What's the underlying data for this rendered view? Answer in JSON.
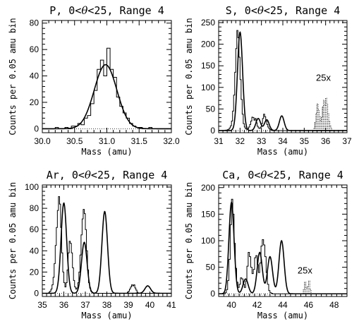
{
  "chart_data": [
    {
      "type": "line",
      "title": "P, 0<θ<25, Range 4",
      "title_parts": [
        "P, 0<",
        "θ",
        "<25, Range 4"
      ],
      "xlabel": "Mass (amu)",
      "ylabel": "Counts per 0.05 amu bin",
      "xlim": [
        30.0,
        32.0
      ],
      "ylim": [
        -3,
        82
      ],
      "xticks": [
        30.0,
        30.5,
        31.0,
        31.5,
        32.0
      ],
      "xtick_labels": [
        "30.0",
        "30.5",
        "31.0",
        "31.5",
        "32.0"
      ],
      "yticks": [
        0,
        20,
        40,
        60,
        80
      ],
      "ytick_labels": [
        "0",
        "20",
        "40",
        "60",
        "80"
      ],
      "series": [
        {
          "kind": "histogram",
          "bin_width": 0.05,
          "x": [
            30.0,
            30.05,
            30.1,
            30.15,
            30.2,
            30.25,
            30.3,
            30.35,
            30.4,
            30.45,
            30.5,
            30.55,
            30.6,
            30.65,
            30.7,
            30.75,
            30.8,
            30.85,
            30.9,
            30.95,
            31.0,
            31.05,
            31.1,
            31.15,
            31.2,
            31.25,
            31.3,
            31.35,
            31.4,
            31.45,
            31.5,
            31.55,
            31.6,
            31.65,
            31.7,
            31.75,
            31.8,
            31.85,
            31.9,
            31.95
          ],
          "values": [
            0,
            0,
            0,
            0,
            1,
            0,
            0,
            1,
            0,
            2,
            2,
            4,
            3,
            8,
            10,
            19,
            29,
            45,
            52,
            40,
            61,
            45,
            39,
            24,
            17,
            12,
            8,
            4,
            2,
            1,
            1,
            0,
            0,
            1,
            0,
            0,
            0,
            0,
            0,
            0
          ]
        },
        {
          "kind": "fit",
          "peaks": [
            {
              "center": 30.98,
              "height": 48.5,
              "sigma": 0.175
            }
          ]
        }
      ]
    },
    {
      "type": "line",
      "title": "S, 0<θ<25, Range 4",
      "title_parts": [
        "S, 0<",
        "θ",
        "<25, Range 4"
      ],
      "xlabel": "Mass (amu)",
      "ylabel": "Counts per 0.05 amu bin",
      "xlim": [
        31,
        37
      ],
      "ylim": [
        -5,
        255
      ],
      "xticks": [
        31,
        32,
        33,
        34,
        35,
        36,
        37
      ],
      "xtick_labels": [
        "31",
        "32",
        "33",
        "34",
        "35",
        "36",
        "37"
      ],
      "yticks": [
        0,
        50,
        100,
        150,
        200,
        250
      ],
      "ytick_labels": [
        "0",
        "50",
        "100",
        "150",
        "200",
        "250"
      ],
      "series": [
        {
          "kind": "histogram",
          "bin_width": 0.05,
          "x_start": 31.0,
          "values": [
            0,
            0,
            0,
            0,
            0,
            0,
            1,
            1,
            2,
            3,
            6,
            11,
            22,
            45,
            82,
            135,
            190,
            232,
            215,
            170,
            118,
            72,
            38,
            16,
            8,
            4,
            3,
            4,
            8,
            14,
            22,
            31,
            30,
            24,
            28,
            18,
            10,
            6,
            5,
            8,
            16,
            28,
            38,
            32,
            22,
            14,
            8,
            4,
            2,
            1,
            0,
            0,
            0,
            0,
            0,
            0,
            0,
            0,
            0,
            0,
            0,
            0,
            0,
            0,
            0,
            0,
            0,
            0,
            0,
            0,
            0,
            0,
            0,
            0,
            0,
            0,
            0,
            0,
            0,
            0,
            0,
            0,
            0,
            0,
            0,
            0,
            0,
            0,
            0,
            0,
            0,
            0,
            0,
            0,
            0,
            0,
            0,
            0,
            0,
            0,
            0,
            0,
            0,
            0,
            0,
            0,
            0,
            0,
            0,
            0,
            0,
            0,
            0,
            0,
            0,
            0,
            0,
            0,
            0,
            0
          ]
        },
        {
          "kind": "fit",
          "peaks": [
            {
              "center": 32.0,
              "height": 228,
              "sigma": 0.12
            },
            {
              "center": 32.85,
              "height": 28,
              "sigma": 0.11
            },
            {
              "center": 33.25,
              "height": 25,
              "sigma": 0.11
            },
            {
              "center": 33.95,
              "height": 34,
              "sigma": 0.11
            }
          ]
        },
        {
          "kind": "scaled",
          "dotted": true,
          "scale": "25x",
          "bin_width": 0.05,
          "x": [
            35.45,
            35.5,
            35.55,
            35.6,
            35.65,
            35.7,
            35.75,
            35.8,
            35.85,
            35.9,
            35.95,
            36.0,
            36.05,
            36.1,
            36.15,
            36.2,
            36.25
          ],
          "values": [
            5,
            20,
            40,
            62,
            48,
            32,
            22,
            30,
            55,
            70,
            58,
            75,
            62,
            40,
            22,
            10,
            4
          ]
        }
      ],
      "annotations": [
        "25x"
      ]
    },
    {
      "type": "line",
      "title": "Ar, 0<θ<25, Range 4",
      "title_parts": [
        "Ar, 0<",
        "θ",
        "<25, Range 4"
      ],
      "xlabel": "Mass (amu)",
      "ylabel": "Counts per 0.05 amu bin",
      "xlim": [
        35,
        41
      ],
      "ylim": [
        -3,
        102
      ],
      "xticks": [
        35,
        36,
        37,
        38,
        39,
        40,
        41
      ],
      "xtick_labels": [
        "35",
        "36",
        "37",
        "38",
        "39",
        "40",
        "41"
      ],
      "yticks": [
        0,
        20,
        40,
        60,
        80,
        100
      ],
      "ytick_labels": [
        "0",
        "20",
        "40",
        "60",
        "80",
        "100"
      ],
      "series": [
        {
          "kind": "histogram",
          "bin_width": 0.05,
          "x_start": 35.0,
          "values": [
            0,
            0,
            0,
            0,
            0,
            0,
            1,
            2,
            4,
            8,
            15,
            28,
            45,
            62,
            78,
            91,
            84,
            62,
            38,
            20,
            10,
            6,
            10,
            22,
            38,
            49,
            47,
            38,
            24,
            12,
            6,
            4,
            5,
            10,
            20,
            36,
            55,
            70,
            79,
            75,
            60,
            40,
            22,
            10,
            5,
            2,
            1,
            0,
            0,
            0,
            0,
            0,
            0,
            0,
            0,
            0,
            0,
            0,
            0,
            0,
            0,
            0,
            0,
            0,
            0,
            0,
            0,
            0,
            0,
            0,
            0,
            0,
            0,
            0,
            0,
            0,
            0,
            0,
            0,
            1,
            2,
            4,
            6,
            8,
            7,
            8,
            5,
            3,
            1,
            0,
            0,
            0,
            0,
            0,
            0,
            0,
            0,
            0,
            0,
            0,
            0,
            0,
            0,
            0,
            0,
            0,
            0,
            0,
            0,
            0,
            0,
            0,
            0,
            0,
            0,
            0,
            0,
            0,
            0,
            0
          ]
        },
        {
          "kind": "fit",
          "peaks": [
            {
              "center": 36.0,
              "height": 85,
              "sigma": 0.13
            },
            {
              "center": 36.95,
              "height": 48,
              "sigma": 0.13
            },
            {
              "center": 37.9,
              "height": 77,
              "sigma": 0.13
            },
            {
              "center": 39.9,
              "height": 7,
              "sigma": 0.13
            }
          ]
        }
      ]
    },
    {
      "type": "line",
      "title": "Ca, 0<θ<25, Range 4",
      "title_parts": [
        "Ca, 0<",
        "θ",
        "<25, Range 4"
      ],
      "xlabel": "Mass (amu)",
      "ylabel": "Counts per 0.05 amu bin",
      "xlim": [
        39,
        49
      ],
      "ylim": [
        -5,
        205
      ],
      "xticks": [
        40,
        42,
        44,
        46,
        48
      ],
      "xtick_labels": [
        "40",
        "42",
        "44",
        "46",
        "48"
      ],
      "yticks": [
        0,
        50,
        100,
        150,
        200
      ],
      "ytick_labels": [
        "0",
        "50",
        "100",
        "150",
        "200"
      ],
      "series": [
        {
          "kind": "histogram",
          "bin_width": 0.1,
          "x_start": 39.0,
          "values": [
            0,
            0,
            0,
            0,
            0,
            2,
            8,
            25,
            65,
            130,
            178,
            150,
            95,
            48,
            22,
            12,
            18,
            30,
            28,
            18,
            12,
            24,
            52,
            78,
            70,
            50,
            38,
            46,
            68,
            72,
            55,
            40,
            58,
            90,
            102,
            92,
            70,
            40,
            18,
            6,
            2,
            1,
            0,
            0,
            0,
            0,
            0,
            0,
            0,
            0,
            0,
            0,
            0,
            0,
            0,
            0,
            0,
            0,
            0,
            0,
            0,
            0,
            0,
            0,
            0,
            0,
            0,
            0,
            0,
            0,
            0,
            0,
            0,
            0,
            0,
            0,
            0,
            0,
            0,
            0,
            0,
            0,
            0,
            0,
            0,
            0,
            0,
            0,
            0,
            0,
            0,
            0,
            0,
            0,
            0,
            0,
            0,
            0,
            0,
            0
          ]
        },
        {
          "kind": "fit",
          "peaks": [
            {
              "center": 40.0,
              "height": 172,
              "sigma": 0.2
            },
            {
              "center": 41.1,
              "height": 28,
              "sigma": 0.2
            },
            {
              "center": 42.2,
              "height": 78,
              "sigma": 0.2
            },
            {
              "center": 43.0,
              "height": 70,
              "sigma": 0.2
            },
            {
              "center": 43.9,
              "height": 100,
              "sigma": 0.2
            }
          ]
        },
        {
          "kind": "scaled",
          "dotted": true,
          "scale": "25x",
          "bin_width": 0.1,
          "x": [
            45.6,
            45.7,
            45.8,
            45.9,
            46.0,
            46.1
          ],
          "values": [
            8,
            22,
            10,
            14,
            24,
            8
          ]
        }
      ],
      "annotations": [
        "25x"
      ]
    }
  ]
}
